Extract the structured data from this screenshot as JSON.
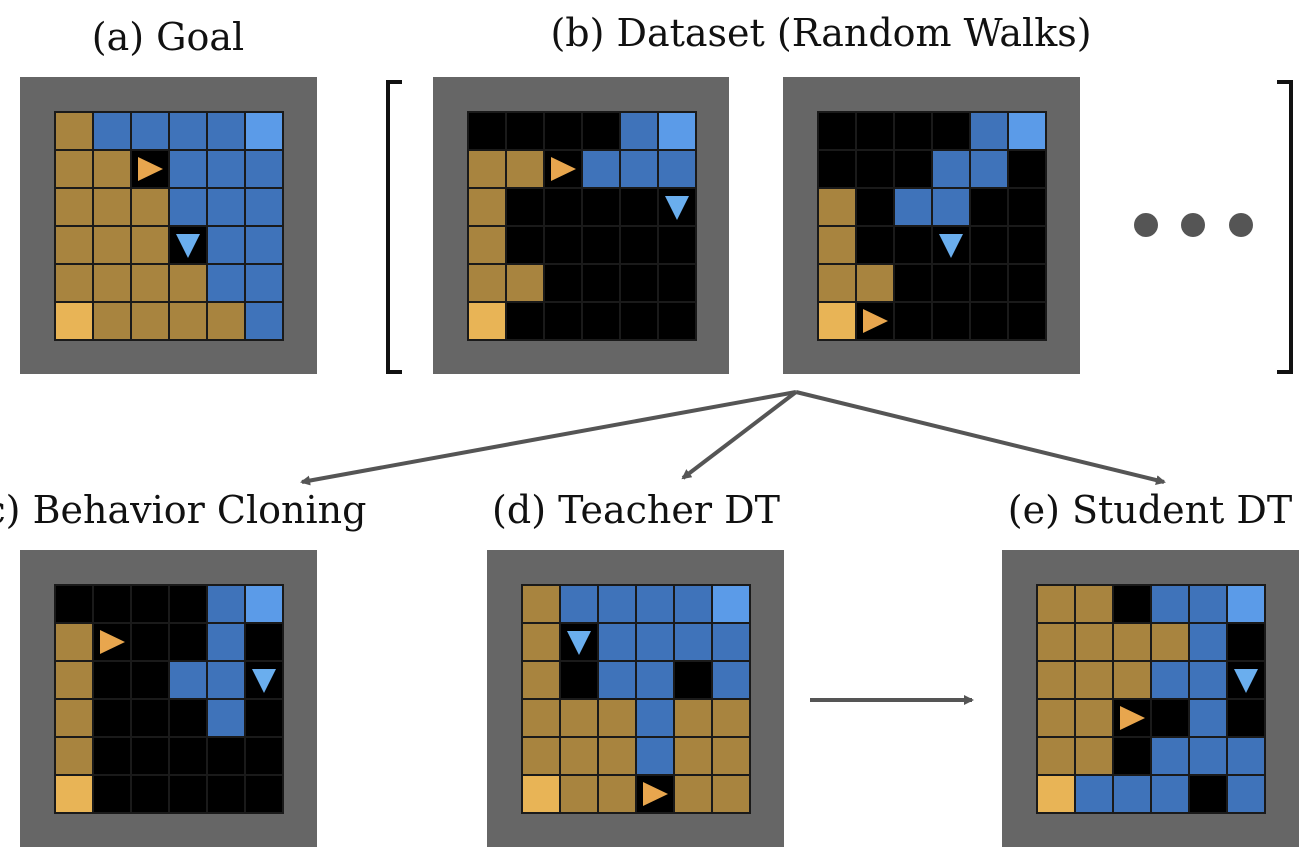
{
  "labels": {
    "goal": "(a) Goal",
    "dataset": "(b) Dataset (Random Walks)",
    "bc": "(c) Behavior Cloning",
    "teacher": "(d) Teacher DT",
    "student": "(e) Student DT"
  },
  "colors": {
    "panel": "#666666",
    "empty": "#000000",
    "gold": "#a8843f",
    "blue": "#3f73ba",
    "light_blue": "#5b9be8",
    "light_gold": "#e8b456",
    "agent_right": "#e8a64e",
    "agent_down": "#6aaeee",
    "arrow": "#555555",
    "dots": "#555555"
  },
  "legend_key": {
    "K": "empty",
    "G": "gold",
    "B": "blue",
    "L": "light_blue",
    "Y": "light_gold",
    "R": "agent_right",
    "D": "agent_down"
  },
  "grids": {
    "goal": [
      "GBBBBL",
      "GGRBBB",
      "GGGBBB",
      "GGGDBB",
      "GGGGBB",
      "YGGGGB"
    ],
    "walk1": [
      "KKKKBL",
      "GGRBBB",
      "GKKKKD",
      "GKKKKK",
      "GGKKKK",
      "YKKKKK"
    ],
    "walk2": [
      "KKKKBL",
      "KKKBBK",
      "GKBBKK",
      "GKKDKK",
      "GGKKKK",
      "YRKKKK"
    ],
    "bc": [
      "KKKKBL",
      "GRKKBK",
      "GKKBBD",
      "GKKKBK",
      "GKKKKK",
      "YKKKKK"
    ],
    "teacher": [
      "GBBBBL",
      "GDBBBB",
      "GKBBKB",
      "GGGBGG",
      "GGGBGG",
      "YGGRGG"
    ],
    "student": [
      "GGKBBL",
      "GGGGBK",
      "GGGBBD",
      "GGRKBK",
      "GGKBBB",
      "YBBBKB"
    ]
  }
}
